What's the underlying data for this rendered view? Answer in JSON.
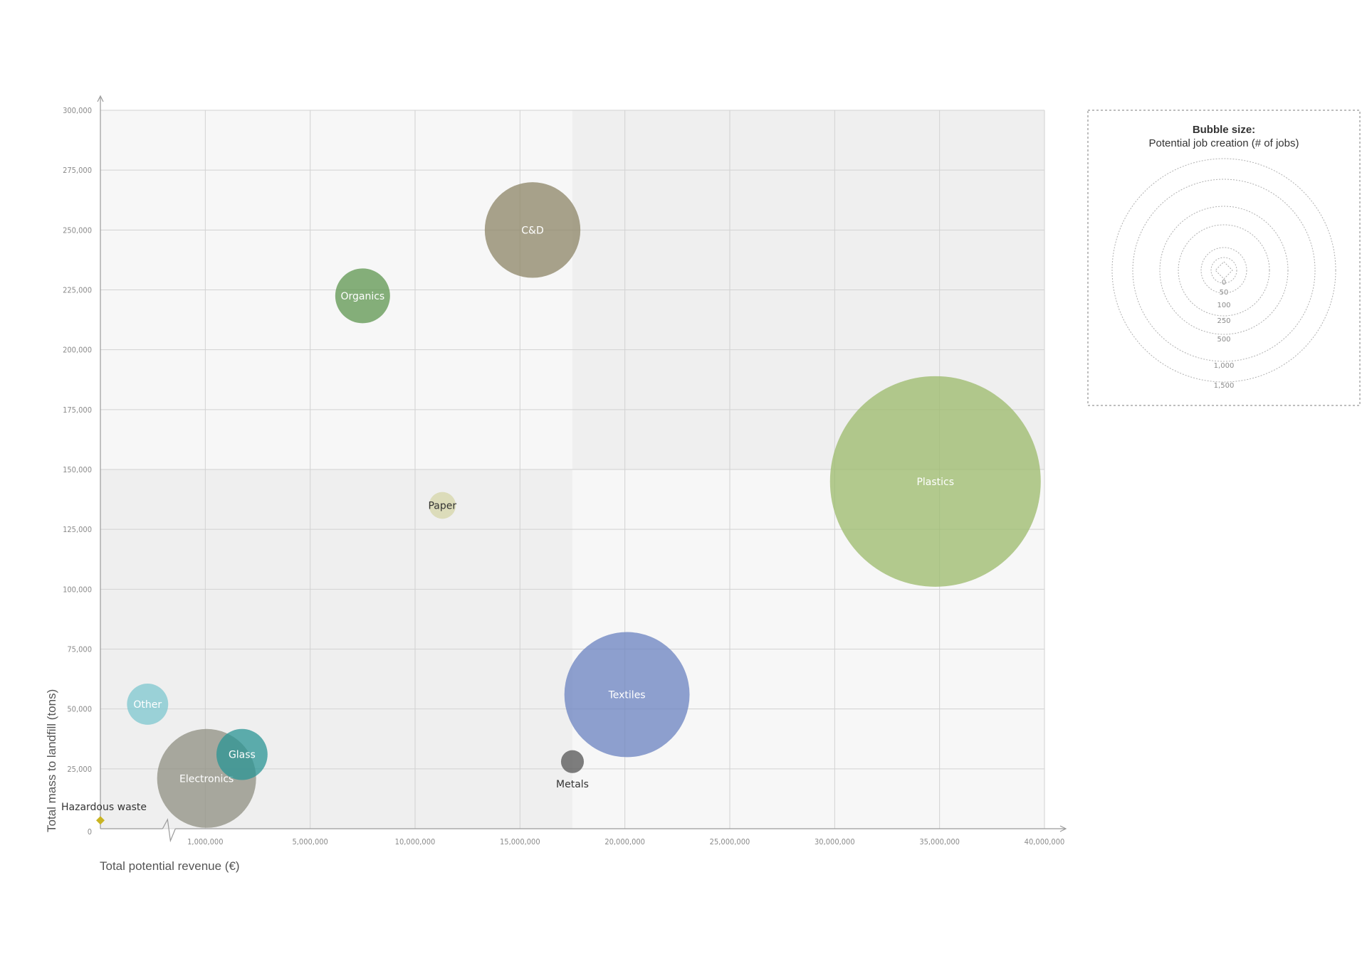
{
  "chart_data": {
    "type": "bubble",
    "xlabel": "Total potential revenue (€)",
    "ylabel": "Total mass to landfill (tons)",
    "x_ticks": [
      "1,000,000",
      "5,000,000",
      "10,000,000",
      "15,000,000",
      "20,000,000",
      "25,000,000",
      "30,000,000",
      "35,000,000",
      "40,000,000"
    ],
    "y_ticks": [
      "300,000",
      "275,000",
      "250,000",
      "225,000",
      "200,000",
      "175,000",
      "150,000",
      "125,000",
      "100,000",
      "75,000",
      "50,000",
      "25,000",
      "0"
    ],
    "xlim": [
      0,
      40000000
    ],
    "ylim": [
      0,
      300000
    ],
    "x_axis_break": true,
    "quadrant_split": {
      "x": 17500000,
      "y": 150000
    },
    "series": [
      {
        "name": "C&D",
        "x": 15600000,
        "y": 250000,
        "jobs": 700,
        "color": "#8c8466"
      },
      {
        "name": "Organics",
        "x": 7500000,
        "y": 222500,
        "jobs": 230,
        "color": "#5e964f"
      },
      {
        "name": "Plastics",
        "x": 34800000,
        "y": 145000,
        "jobs": 3400,
        "color": "#9bba69"
      },
      {
        "name": "Paper",
        "x": 11300000,
        "y": 135000,
        "jobs": 55,
        "color": "#d6d6a8",
        "dark_label": true
      },
      {
        "name": "Textiles",
        "x": 20100000,
        "y": 56000,
        "jobs": 1200,
        "color": "#6a82c0"
      },
      {
        "name": "Metals",
        "x": 17500000,
        "y": 28000,
        "jobs": 40,
        "color": "#545454",
        "label_below": true,
        "dark_label": true
      },
      {
        "name": "Other",
        "x": 450000,
        "y": 52000,
        "jobs": 130,
        "color": "#7dc7cf"
      },
      {
        "name": "Electronics",
        "x": 1050000,
        "y": 21000,
        "jobs": 750,
        "color": "#8f8f82"
      },
      {
        "name": "Glass",
        "x": 2400000,
        "y": 31000,
        "jobs": 200,
        "color": "#2a9494"
      },
      {
        "name": "Hazardous waste",
        "x": 0,
        "y": 3500,
        "jobs": 0,
        "color": "#c9b422",
        "dark_label": true,
        "label_above_left": true
      }
    ]
  },
  "legend": {
    "title_line1": "Bubble size:",
    "title_line2": "Potential job creation (# of jobs)",
    "ticks": [
      "0",
      "50",
      "100",
      "250",
      "500",
      "1,000",
      "1,500"
    ]
  }
}
